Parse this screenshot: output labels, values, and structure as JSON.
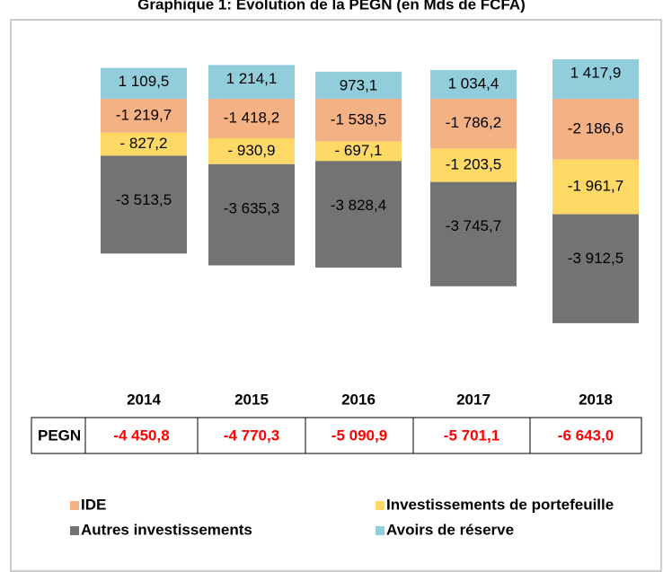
{
  "chart_data": {
    "type": "bar",
    "stacked": true,
    "title": "Graphique 1: Evolution de la PEGN (en Mds de FCFA)",
    "categories": [
      "2014",
      "2015",
      "2016",
      "2017",
      "2018"
    ],
    "series": [
      {
        "name": "IDE",
        "color": "#f4b183",
        "values": [
          -1219.7,
          -1418.2,
          -1538.5,
          -1786.2,
          -2186.6
        ],
        "value_labels": [
          "-1 219,7",
          "-1 418,2",
          "-1 538,5",
          "-1 786,2",
          "-2 186,6"
        ]
      },
      {
        "name": "Investissements de portefeuille",
        "color": "#ffd966",
        "values": [
          -827.2,
          -930.9,
          -697.1,
          -1203.5,
          -1961.7
        ],
        "value_labels": [
          "- 827,2",
          "- 930,9",
          "- 697,1",
          "-1 203,5",
          "-1 961,7"
        ]
      },
      {
        "name": "Autres investissements",
        "color": "#737373",
        "values": [
          -3513.5,
          -3635.3,
          -3828.4,
          -3745.7,
          -3912.5
        ],
        "value_labels": [
          "-3 513,5",
          "-3 635,3",
          "-3 828,4",
          "-3 745,7",
          "-3 912,5"
        ]
      },
      {
        "name": "Avoirs de réserve",
        "color": "#92cddc",
        "values": [
          1109.5,
          1214.1,
          973.1,
          1034.4,
          1417.9
        ],
        "value_labels": [
          "1 109,5",
          "1 214,1",
          "973,1",
          "1 034,4",
          "1 417,9"
        ]
      }
    ],
    "table": {
      "label": "PEGN",
      "values": [
        "-4 450,8",
        "-4 770,3",
        "-5 090,9",
        "-5 701,1",
        "-6 643,0"
      ]
    }
  }
}
